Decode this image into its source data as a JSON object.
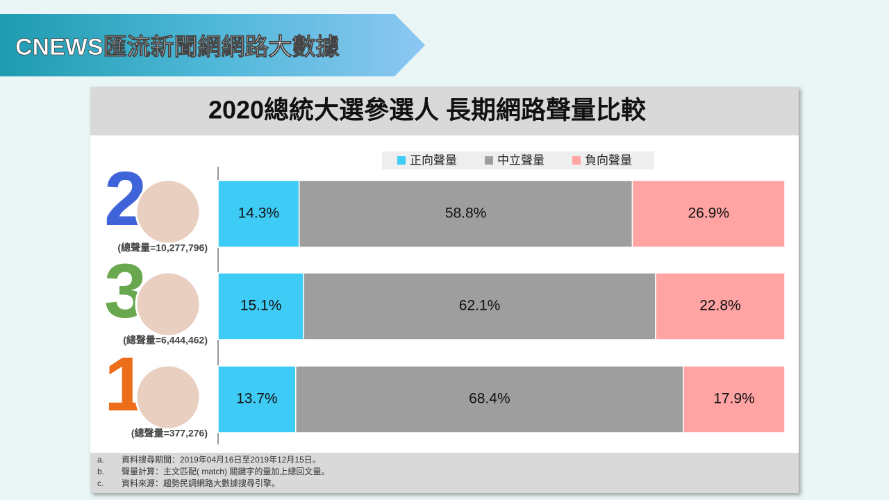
{
  "header": {
    "banner": "CNEWS匯流新聞網網路大數據"
  },
  "chart_data": {
    "type": "stacked_bar",
    "title": "2020總統大選參選人 長期網路聲量比較",
    "categories": [
      "2",
      "3",
      "1"
    ],
    "category_colors": [
      "#3f63d8",
      "#6aa84f",
      "#ec6d1a"
    ],
    "category_notes": [
      "(總聲量=10,277,796)",
      "(總聲量=6,444,462)",
      "(總聲量=377,276)"
    ],
    "series": [
      {
        "name": "正向聲量",
        "color": "#3ecbf5",
        "values": [
          14.3,
          15.1,
          13.7
        ],
        "value_labels": [
          "14.3%",
          "15.1%",
          "13.7%"
        ]
      },
      {
        "name": "中立聲量",
        "color": "#9e9e9e",
        "values": [
          58.8,
          62.1,
          68.4
        ],
        "value_labels": [
          "58.8%",
          "62.1%",
          "68.4%"
        ]
      },
      {
        "name": "負向聲量",
        "color": "#ffa3a3",
        "values": [
          26.9,
          22.8,
          17.9
        ],
        "value_labels": [
          "26.9%",
          "22.8%",
          "17.9%"
        ]
      }
    ]
  },
  "notes": [
    {
      "marker": "a.",
      "text": "資料搜尋期間：2019年04月16日至2019年12月15日。"
    },
    {
      "marker": "b.",
      "text": "聲量計算：主文匹配( match) 關鍵字的量加上總回文量。"
    },
    {
      "marker": "c.",
      "text": "資料來源：趨勢民調網路大數據搜尋引擎。"
    }
  ]
}
